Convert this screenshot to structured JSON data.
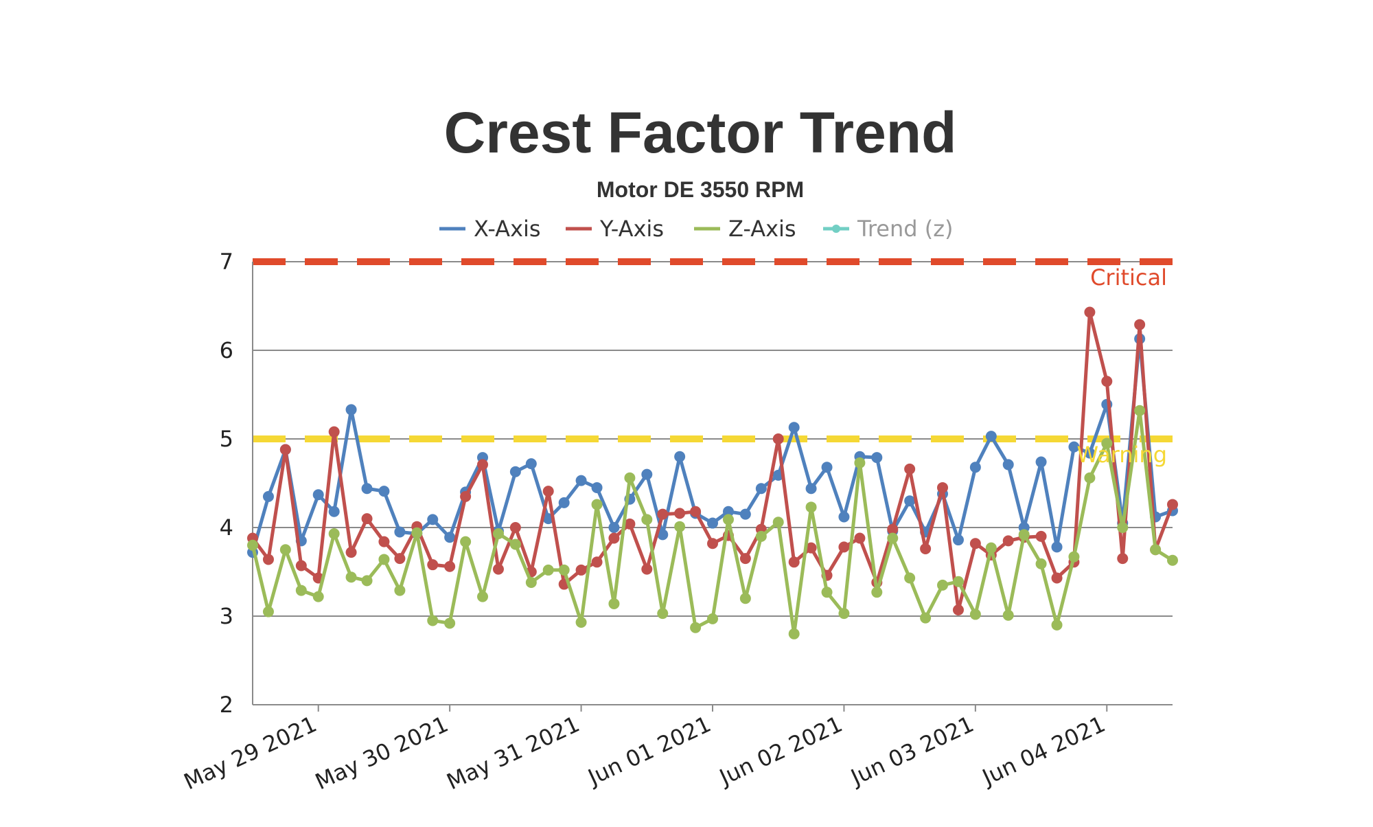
{
  "chart_data": {
    "type": "line",
    "title": "Crest Factor Trend",
    "subtitle": "Motor DE 3550 RPM",
    "ylim": [
      2,
      7
    ],
    "yticks": [
      2,
      3,
      4,
      5,
      6,
      7
    ],
    "xlim": [
      0.5,
      7.5
    ],
    "xticks": [
      {
        "x": 1,
        "label": "May 29 2021"
      },
      {
        "x": 2,
        "label": "May 30 2021"
      },
      {
        "x": 3,
        "label": "May 31 2021"
      },
      {
        "x": 4,
        "label": "Jun 01 2021"
      },
      {
        "x": 5,
        "label": "Jun 02 2021"
      },
      {
        "x": 6,
        "label": "Jun 03 2021"
      },
      {
        "x": 7,
        "label": "Jun 04 2021"
      }
    ],
    "grid": true,
    "legend_position": "top",
    "thresholds": [
      {
        "label": "Critical",
        "value": 7,
        "color": "#e04a2b"
      },
      {
        "label": "Warning",
        "value": 5,
        "color": "#f5d835"
      }
    ],
    "series": [
      {
        "name": "X-Axis",
        "color": "#4f81bd",
        "visible": true,
        "x": [
          0.5,
          0.62,
          0.75,
          0.87,
          1.0,
          1.12,
          1.25,
          1.37,
          1.5,
          1.62,
          1.75,
          1.87,
          2.0,
          2.12,
          2.25,
          2.37,
          2.5,
          2.62,
          2.75,
          2.87,
          3.0,
          3.12,
          3.25,
          3.37,
          3.5,
          3.62,
          3.75,
          3.87,
          4.0,
          4.12,
          4.25,
          4.37,
          4.5,
          4.62,
          4.75,
          4.87,
          5.0,
          5.12,
          5.25,
          5.37,
          5.5,
          5.62,
          5.75,
          5.87,
          6.0,
          6.12,
          6.25,
          6.37,
          6.5,
          6.62,
          6.75,
          6.87,
          7.0,
          7.12,
          7.25,
          7.37,
          7.5
        ],
        "y": [
          3.72,
          4.35,
          4.88,
          3.85,
          4.37,
          4.18,
          5.33,
          4.44,
          4.41,
          3.95,
          3.93,
          4.09,
          3.89,
          4.4,
          4.79,
          3.96,
          4.63,
          4.72,
          4.1,
          4.28,
          4.53,
          4.45,
          4.0,
          4.32,
          4.6,
          3.92,
          4.8,
          4.16,
          4.05,
          4.18,
          4.15,
          4.44,
          4.59,
          5.13,
          4.44,
          4.68,
          4.12,
          4.8,
          4.79,
          3.96,
          4.3,
          3.95,
          4.38,
          3.86,
          4.68,
          5.03,
          4.71,
          4.0,
          4.74,
          3.78,
          4.91,
          4.84,
          5.39,
          4.05,
          6.13,
          4.12,
          4.19
        ]
      },
      {
        "name": "Y-Axis",
        "color": "#c0504d",
        "visible": true,
        "x": [
          0.5,
          0.62,
          0.75,
          0.87,
          1.0,
          1.12,
          1.25,
          1.37,
          1.5,
          1.62,
          1.75,
          1.87,
          2.0,
          2.12,
          2.25,
          2.37,
          2.5,
          2.62,
          2.75,
          2.87,
          3.0,
          3.12,
          3.25,
          3.37,
          3.5,
          3.62,
          3.75,
          3.87,
          4.0,
          4.12,
          4.25,
          4.37,
          4.5,
          4.62,
          4.75,
          4.87,
          5.0,
          5.12,
          5.25,
          5.37,
          5.5,
          5.62,
          5.75,
          5.87,
          6.0,
          6.12,
          6.25,
          6.37,
          6.5,
          6.62,
          6.75,
          6.87,
          7.0,
          7.12,
          7.25,
          7.37,
          7.5
        ],
        "y": [
          3.88,
          3.64,
          4.88,
          3.57,
          3.43,
          5.08,
          3.72,
          4.1,
          3.84,
          3.65,
          4.01,
          3.58,
          3.56,
          4.35,
          4.71,
          3.53,
          4.0,
          3.5,
          4.41,
          3.36,
          3.52,
          3.61,
          3.88,
          4.04,
          3.53,
          4.15,
          4.16,
          4.18,
          3.82,
          3.91,
          3.65,
          3.98,
          5.0,
          3.61,
          3.77,
          3.46,
          3.78,
          3.88,
          3.38,
          3.98,
          4.66,
          3.76,
          4.45,
          3.07,
          3.82,
          3.69,
          3.85,
          3.89,
          3.9,
          3.43,
          3.61,
          6.43,
          5.65,
          3.65,
          6.29,
          3.75,
          4.26
        ]
      },
      {
        "name": "Z-Axis",
        "color": "#9bbb59",
        "visible": true,
        "x": [
          0.5,
          0.62,
          0.75,
          0.87,
          1.0,
          1.12,
          1.25,
          1.37,
          1.5,
          1.62,
          1.75,
          1.87,
          2.0,
          2.12,
          2.25,
          2.37,
          2.5,
          2.62,
          2.75,
          2.87,
          3.0,
          3.12,
          3.25,
          3.37,
          3.5,
          3.62,
          3.75,
          3.87,
          4.0,
          4.12,
          4.25,
          4.37,
          4.5,
          4.62,
          4.75,
          4.87,
          5.0,
          5.12,
          5.25,
          5.37,
          5.5,
          5.62,
          5.75,
          5.87,
          6.0,
          6.12,
          6.25,
          6.37,
          6.5,
          6.62,
          6.75,
          6.87,
          7.0,
          7.12,
          7.25,
          7.37,
          7.5
        ],
        "y": [
          3.8,
          3.05,
          3.75,
          3.29,
          3.22,
          3.93,
          3.44,
          3.4,
          3.64,
          3.29,
          3.94,
          2.95,
          2.92,
          3.84,
          3.22,
          3.93,
          3.81,
          3.38,
          3.52,
          3.52,
          2.93,
          4.26,
          3.14,
          4.56,
          4.09,
          3.03,
          4.01,
          2.87,
          2.97,
          4.09,
          3.2,
          3.9,
          4.06,
          2.8,
          4.23,
          3.27,
          3.03,
          4.73,
          3.27,
          3.88,
          3.43,
          2.98,
          3.35,
          3.39,
          3.02,
          3.77,
          3.01,
          3.92,
          3.59,
          2.9,
          3.67,
          4.56,
          4.95,
          4.0,
          5.32,
          3.75,
          3.63
        ]
      },
      {
        "name": "Trend (z)",
        "color": "#72cfc4",
        "visible": false,
        "x": [],
        "y": []
      }
    ]
  }
}
